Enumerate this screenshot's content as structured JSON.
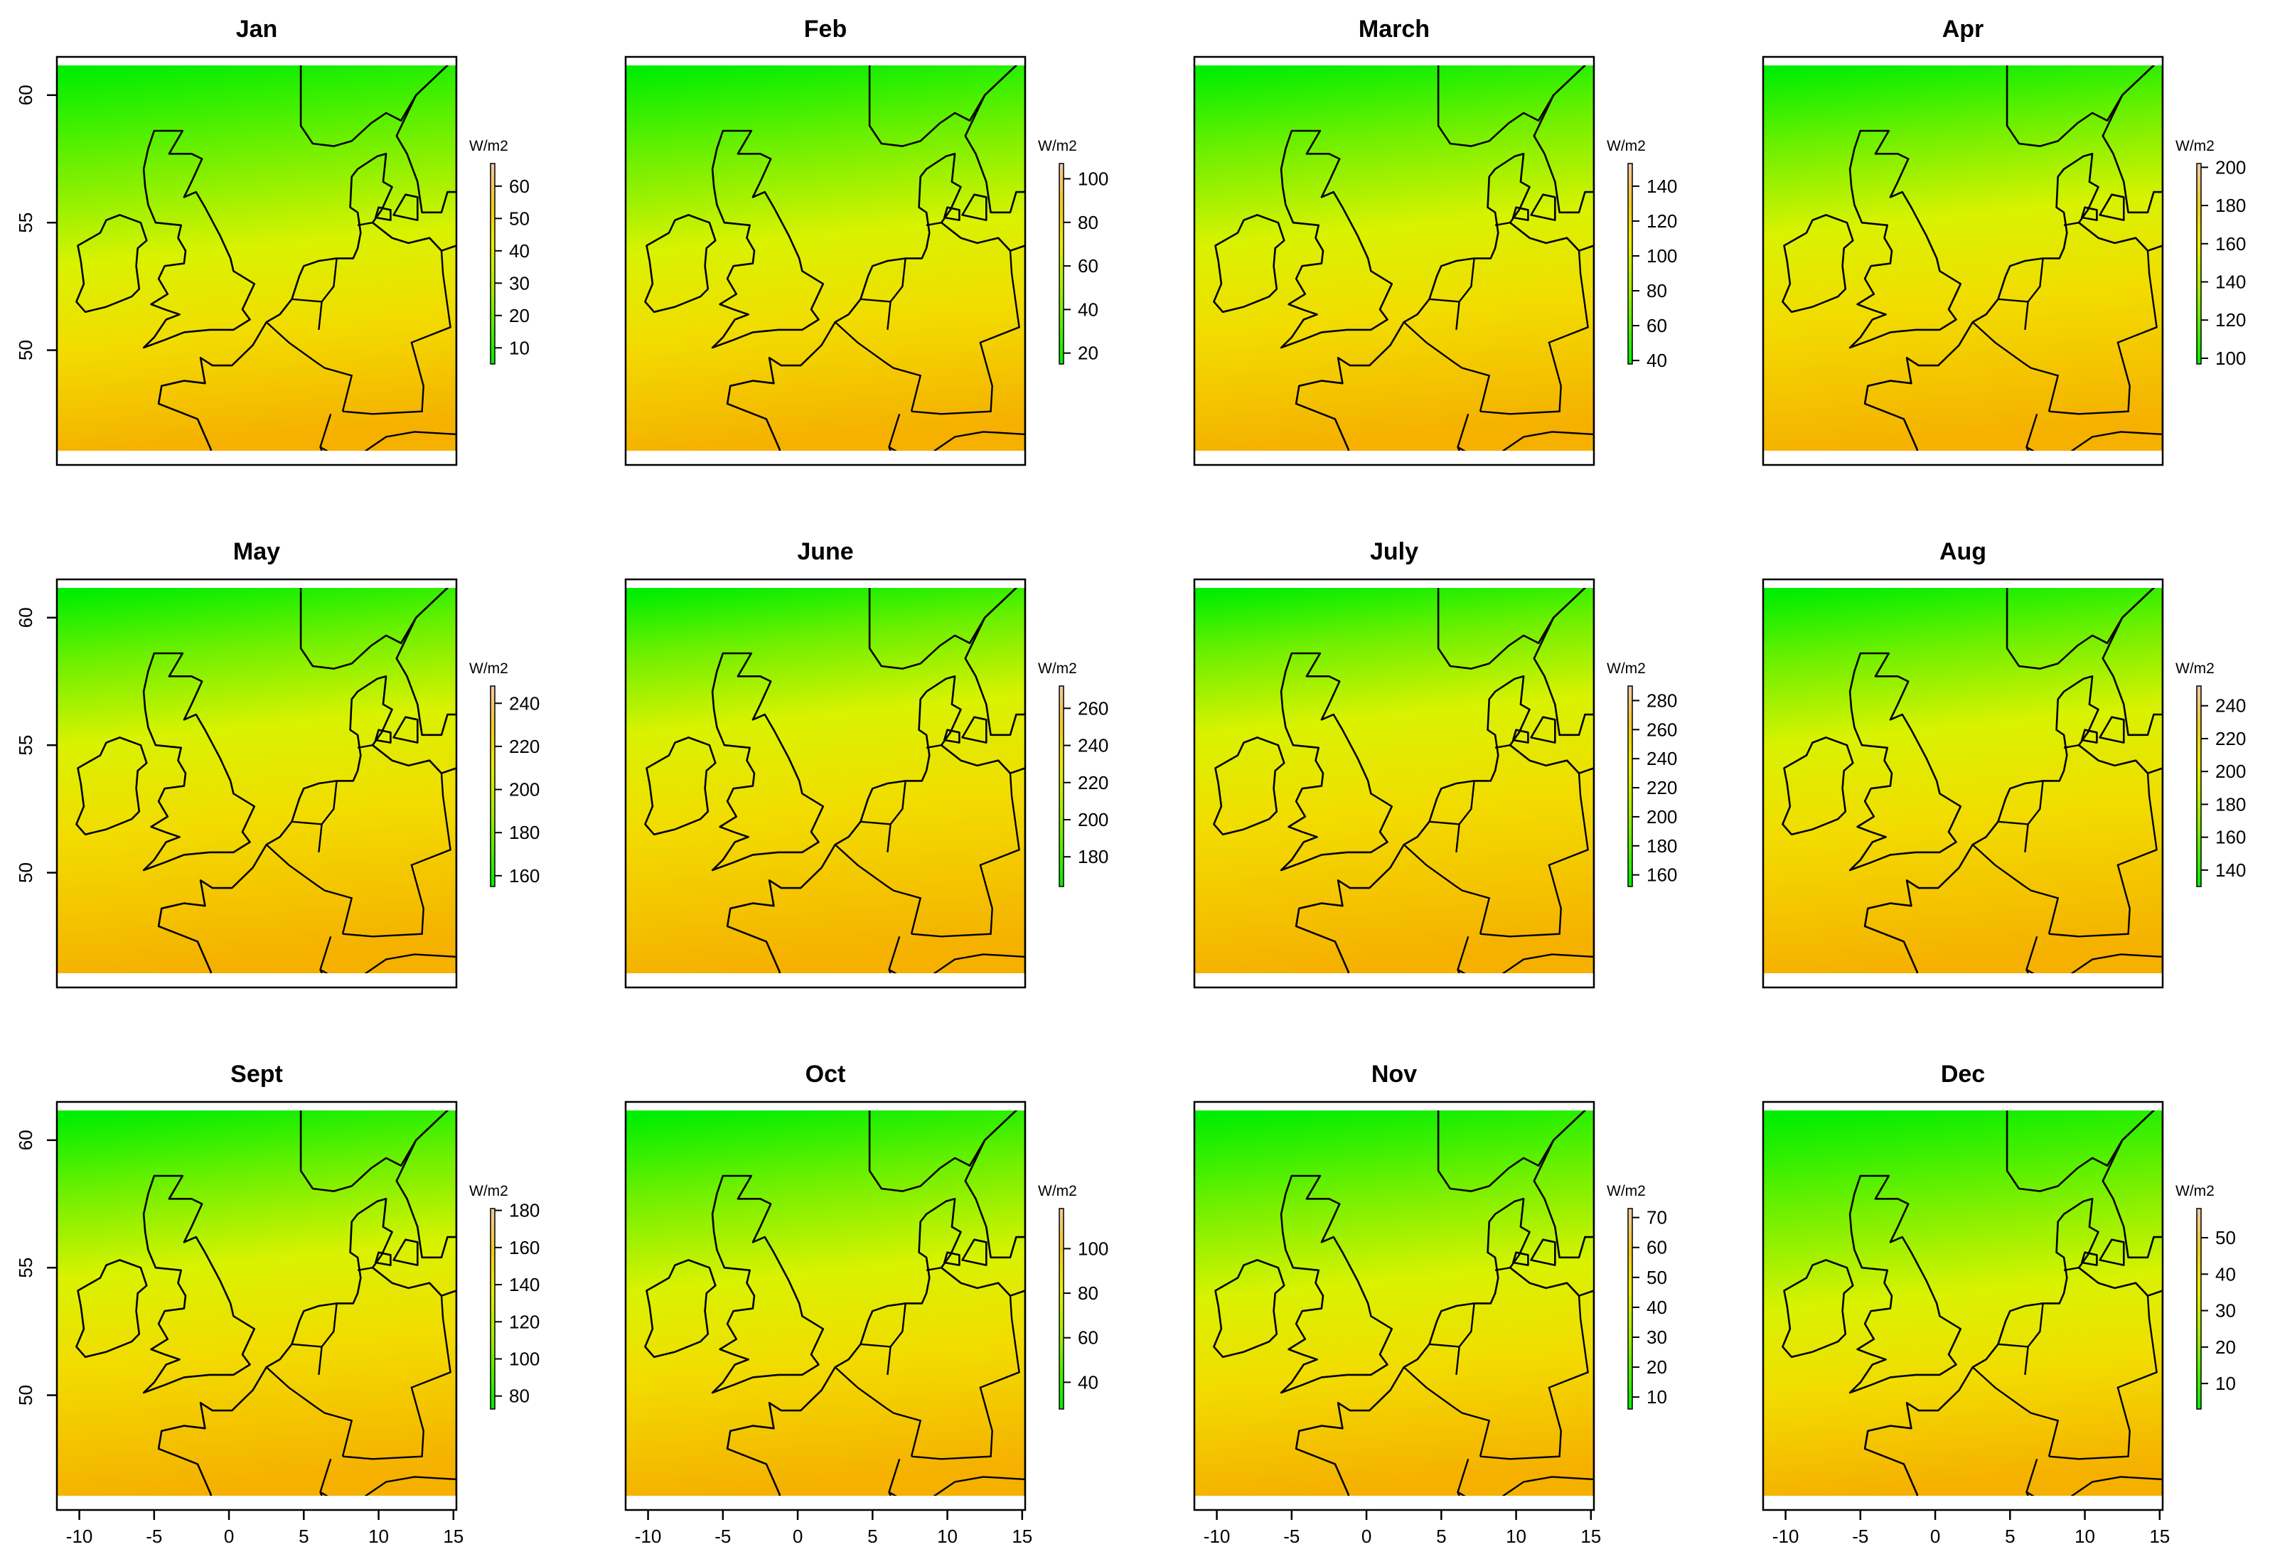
{
  "figure": {
    "unit_label": "W/m2",
    "colors": {
      "low": "#00ee00",
      "mid": "#d9f200",
      "high_yellow": "#f2dc00",
      "high_orange": "#f5a800",
      "coastline": "#000000"
    }
  },
  "chart_data": [
    {
      "type": "heatmap",
      "title": "Jan",
      "colorbar_ticks": [
        10,
        20,
        30,
        40,
        50,
        60
      ],
      "colorbar_range": [
        5,
        67
      ],
      "value_range": [
        5,
        67
      ],
      "x_ticks": [
        -10,
        -5,
        0,
        5,
        10,
        15
      ],
      "y_ticks": [
        50,
        55,
        60
      ],
      "xlim": [
        -11.5,
        15.2
      ],
      "ylim": [
        45.5,
        61.5
      ]
    },
    {
      "type": "heatmap",
      "title": "Feb",
      "colorbar_ticks": [
        20,
        40,
        60,
        80,
        100
      ],
      "colorbar_range": [
        15,
        107
      ],
      "value_range": [
        15,
        107
      ],
      "x_ticks": [
        -10,
        -5,
        0,
        5,
        10,
        15
      ],
      "y_ticks": [
        50,
        55,
        60
      ],
      "xlim": [
        -11.5,
        15.2
      ],
      "ylim": [
        45.5,
        61.5
      ]
    },
    {
      "type": "heatmap",
      "title": "March",
      "colorbar_ticks": [
        40,
        60,
        80,
        100,
        120,
        140
      ],
      "colorbar_range": [
        38,
        153
      ],
      "value_range": [
        38,
        153
      ],
      "x_ticks": [
        -10,
        -5,
        0,
        5,
        10,
        15
      ],
      "y_ticks": [
        50,
        55,
        60
      ],
      "xlim": [
        -11.5,
        15.2
      ],
      "ylim": [
        45.5,
        61.5
      ]
    },
    {
      "type": "heatmap",
      "title": "Apr",
      "colorbar_ticks": [
        100,
        120,
        140,
        160,
        180,
        200
      ],
      "colorbar_range": [
        97,
        202
      ],
      "value_range": [
        97,
        202
      ],
      "x_ticks": [
        -10,
        -5,
        0,
        5,
        10,
        15
      ],
      "y_ticks": [
        50,
        55,
        60
      ],
      "xlim": [
        -11.5,
        15.2
      ],
      "ylim": [
        45.5,
        61.5
      ]
    },
    {
      "type": "heatmap",
      "title": "May",
      "colorbar_ticks": [
        160,
        180,
        200,
        220,
        240
      ],
      "colorbar_range": [
        155,
        248
      ],
      "value_range": [
        155,
        248
      ],
      "x_ticks": [
        -10,
        -5,
        0,
        5,
        10,
        15
      ],
      "y_ticks": [
        50,
        55,
        60
      ],
      "xlim": [
        -11.5,
        15.2
      ],
      "ylim": [
        45.5,
        61.5
      ]
    },
    {
      "type": "heatmap",
      "title": "June",
      "colorbar_ticks": [
        180,
        200,
        220,
        240,
        260
      ],
      "colorbar_range": [
        164,
        272
      ],
      "value_range": [
        164,
        272
      ],
      "x_ticks": [
        -10,
        -5,
        0,
        5,
        10,
        15
      ],
      "y_ticks": [
        50,
        55,
        60
      ],
      "xlim": [
        -11.5,
        15.2
      ],
      "ylim": [
        45.5,
        61.5
      ]
    },
    {
      "type": "heatmap",
      "title": "July",
      "colorbar_ticks": [
        160,
        180,
        200,
        220,
        240,
        260,
        280
      ],
      "colorbar_range": [
        152,
        290
      ],
      "value_range": [
        152,
        290
      ],
      "x_ticks": [
        -10,
        -5,
        0,
        5,
        10,
        15
      ],
      "y_ticks": [
        50,
        55,
        60
      ],
      "xlim": [
        -11.5,
        15.2
      ],
      "ylim": [
        45.5,
        61.5
      ]
    },
    {
      "type": "heatmap",
      "title": "Aug",
      "colorbar_ticks": [
        140,
        160,
        180,
        200,
        220,
        240
      ],
      "colorbar_range": [
        130,
        252
      ],
      "value_range": [
        130,
        252
      ],
      "x_ticks": [
        -10,
        -5,
        0,
        5,
        10,
        15
      ],
      "y_ticks": [
        50,
        55,
        60
      ],
      "xlim": [
        -11.5,
        15.2
      ],
      "ylim": [
        45.5,
        61.5
      ]
    },
    {
      "type": "heatmap",
      "title": "Sept",
      "colorbar_ticks": [
        80,
        100,
        120,
        140,
        160,
        180
      ],
      "colorbar_range": [
        73,
        181
      ],
      "value_range": [
        73,
        181
      ],
      "x_ticks": [
        -10,
        -5,
        0,
        5,
        10,
        15
      ],
      "y_ticks": [
        50,
        55,
        60
      ],
      "xlim": [
        -11.5,
        15.2
      ],
      "ylim": [
        45.5,
        61.5
      ]
    },
    {
      "type": "heatmap",
      "title": "Oct",
      "colorbar_ticks": [
        40,
        60,
        80,
        100
      ],
      "colorbar_range": [
        28,
        118
      ],
      "value_range": [
        28,
        118
      ],
      "x_ticks": [
        -10,
        -5,
        0,
        5,
        10,
        15
      ],
      "y_ticks": [
        50,
        55,
        60
      ],
      "xlim": [
        -11.5,
        15.2
      ],
      "ylim": [
        45.5,
        61.5
      ]
    },
    {
      "type": "heatmap",
      "title": "Nov",
      "colorbar_ticks": [
        10,
        20,
        30,
        40,
        50,
        60,
        70
      ],
      "colorbar_range": [
        6,
        73
      ],
      "value_range": [
        6,
        73
      ],
      "x_ticks": [
        -10,
        -5,
        0,
        5,
        10,
        15
      ],
      "y_ticks": [
        50,
        55,
        60
      ],
      "xlim": [
        -11.5,
        15.2
      ],
      "ylim": [
        45.5,
        61.5
      ]
    },
    {
      "type": "heatmap",
      "title": "Dec",
      "colorbar_ticks": [
        10,
        20,
        30,
        40,
        50
      ],
      "colorbar_range": [
        3,
        58
      ],
      "value_range": [
        3,
        58
      ],
      "x_ticks": [
        -10,
        -5,
        0,
        5,
        10,
        15
      ],
      "y_ticks": [
        50,
        55,
        60
      ],
      "xlim": [
        -11.5,
        15.2
      ],
      "ylim": [
        45.5,
        61.5
      ]
    }
  ]
}
